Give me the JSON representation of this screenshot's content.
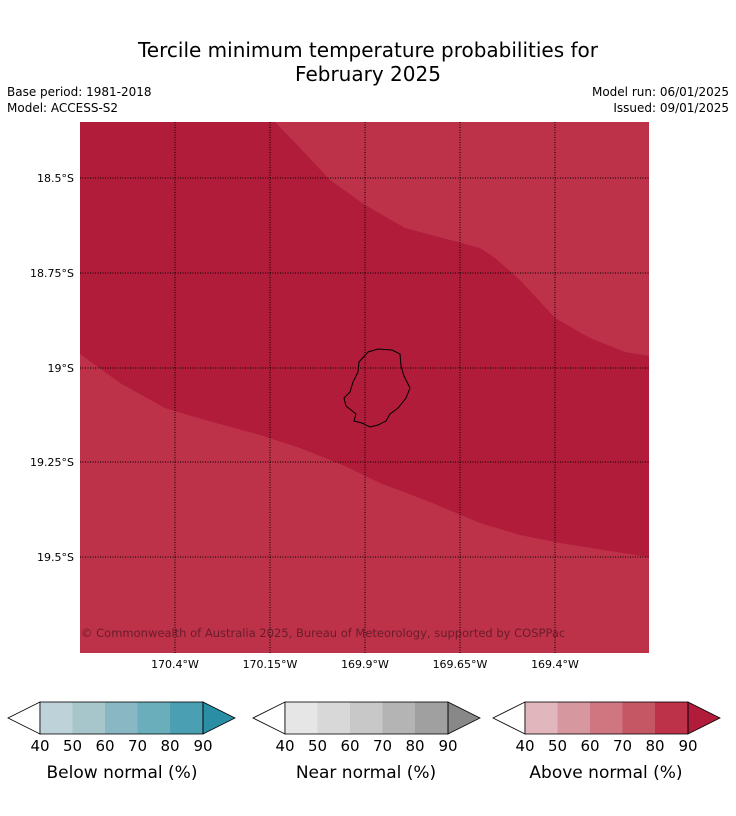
{
  "title": {
    "line1": "Tercile minimum temperature probabilities for",
    "line2": "February 2025"
  },
  "meta": {
    "base_period": "Base period: 1981-2018",
    "model": "Model: ACCESS-S2",
    "model_run": "Model run: 06/01/2025",
    "issued": "Issued: 09/01/2025"
  },
  "map": {
    "copyright": "© Commonwealth of Australia 2025, Bureau of Meteorology, supported by COSPPac",
    "lat_labels": [
      "18.5°S",
      "18.75°S",
      "19°S",
      "19.25°S",
      "19.5°S"
    ],
    "lon_labels": [
      "170.4°W",
      "170.15°W",
      "169.9°W",
      "169.65°W",
      "169.4°W"
    ],
    "colors": {
      "above_80": "#bd3249",
      "above_90": "#b01c39"
    }
  },
  "legends": [
    {
      "label": "Below normal (%)",
      "ticks": [
        "40",
        "50",
        "60",
        "70",
        "80",
        "90"
      ],
      "colors": [
        "#bed3d9",
        "#a6c6cc",
        "#89b8c4",
        "#6aaebc",
        "#4a9fb2",
        "#2a8ea5"
      ]
    },
    {
      "label": "Near normal (%)",
      "ticks": [
        "40",
        "50",
        "60",
        "70",
        "80",
        "90"
      ],
      "colors": [
        "#e6e6e6",
        "#d8d8d8",
        "#c8c8c8",
        "#b4b4b4",
        "#a0a0a0",
        "#888888"
      ]
    },
    {
      "label": "Above normal (%)",
      "ticks": [
        "40",
        "50",
        "60",
        "70",
        "80",
        "90"
      ],
      "colors": [
        "#e2b6bd",
        "#d6979f",
        "#cf7680",
        "#c45763",
        "#bd3249",
        "#b01c39"
      ]
    }
  ]
}
